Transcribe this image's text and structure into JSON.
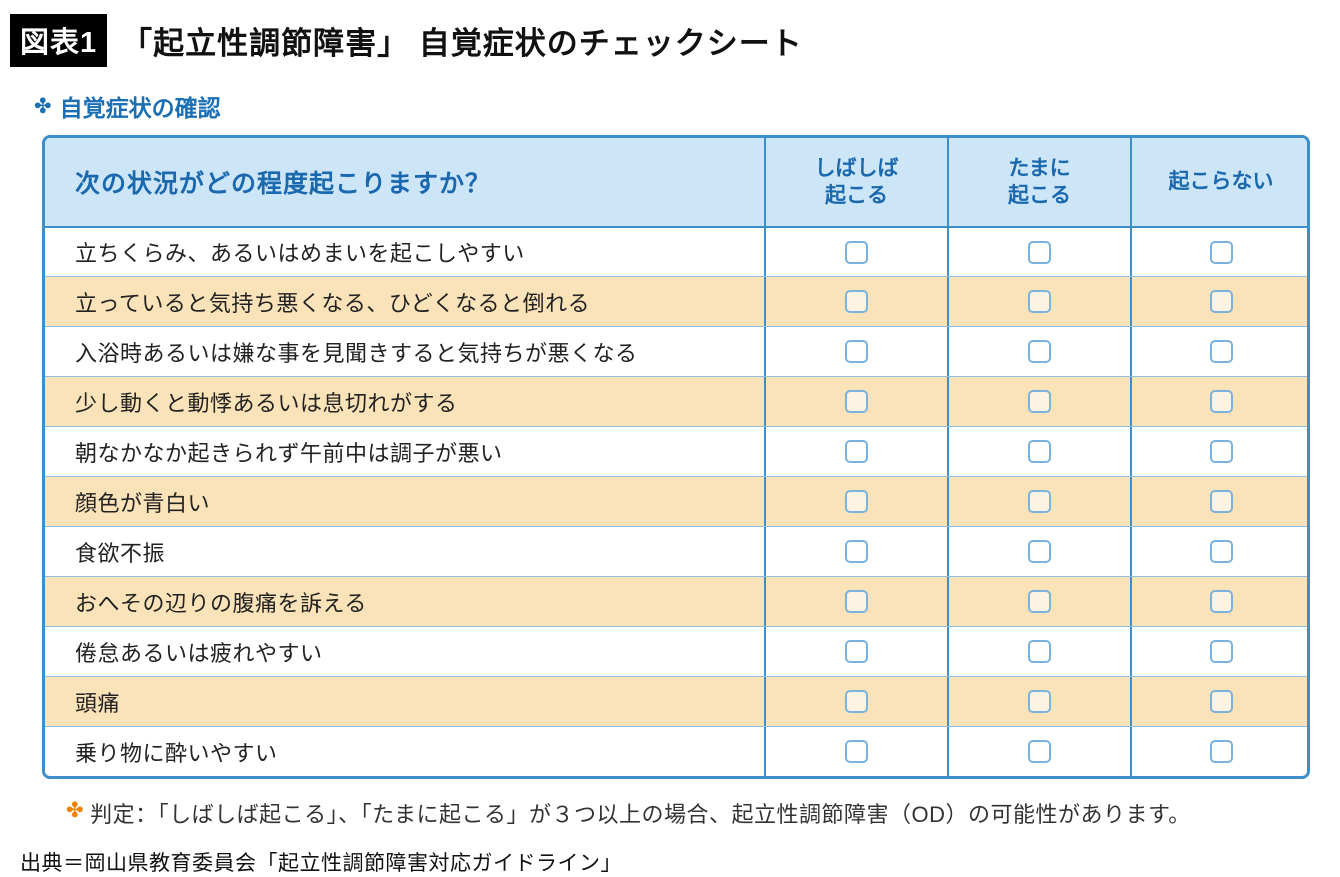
{
  "figure": {
    "badge": "図表1",
    "title": "「起立性調節障害」 自覚症状のチェックシート"
  },
  "section": {
    "bullet_icon": "✤",
    "label": "自覚症状の確認"
  },
  "table": {
    "question_header": "次の状況がどの程度起こりますか？",
    "columns": [
      "しばしば\n起こる",
      "たまに\n起こる",
      "起こらない"
    ],
    "rows": [
      "立ちくらみ、あるいはめまいを起こしやすい",
      "立っていると気持ち悪くなる、ひどくなると倒れる",
      "入浴時あるいは嫌な事を見聞きすると気持ちが悪くなる",
      "少し動くと動悸あるいは息切れがする",
      "朝なかなか起きられず午前中は調子が悪い",
      "顔色が青白い",
      "食欲不振",
      "おへその辺りの腹痛を訴える",
      "倦怠あるいは疲れやすい",
      "頭痛",
      "乗り物に酔いやすい"
    ]
  },
  "judgment": {
    "bullet_icon": "✤",
    "text": "判定：「しばしば起こる」、「たまに起こる」が３つ以上の場合、起立性調節障害（OD）の可能性があります。"
  },
  "source": "出典＝岡山県教育委員会「起立性調節障害対応ガイドライン」",
  "colors": {
    "accent_blue": "#1b6fb5",
    "table_border_blue": "#3d8ec9",
    "header_bg_blue": "#cde6f7",
    "alt_row_orange": "#fbe3b9",
    "bullet_orange": "#ef8200",
    "badge_black": "#000000"
  }
}
